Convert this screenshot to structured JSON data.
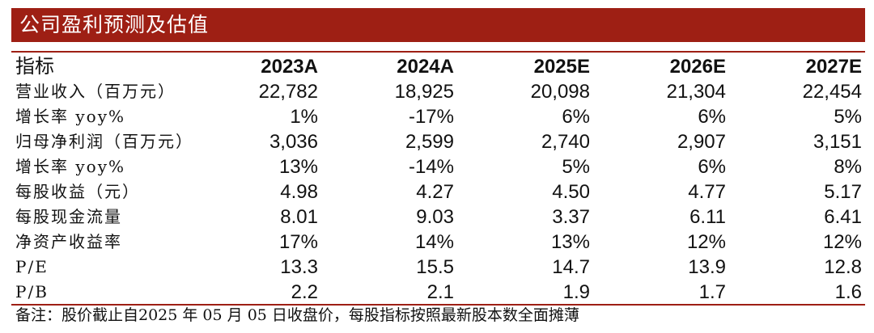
{
  "title": "公司盈利预测及估值",
  "table": {
    "header_label": "指标",
    "columns": [
      "2023A",
      "2024A",
      "2025E",
      "2026E",
      "2027E"
    ],
    "rows": [
      {
        "label": "营业收入（百万元）",
        "values": [
          "22,782",
          "18,925",
          "20,098",
          "21,304",
          "22,454"
        ]
      },
      {
        "label": "增长率 yoy%",
        "values": [
          "1%",
          "-17%",
          "6%",
          "6%",
          "5%"
        ]
      },
      {
        "label": "归母净利润（百万元）",
        "values": [
          "3,036",
          "2,599",
          "2,740",
          "2,907",
          "3,151"
        ]
      },
      {
        "label": "增长率 yoy%",
        "values": [
          "13%",
          "-14%",
          "5%",
          "6%",
          "8%"
        ]
      },
      {
        "label": "每股收益（元）",
        "values": [
          "4.98",
          "4.27",
          "4.50",
          "4.77",
          "5.17"
        ]
      },
      {
        "label": "每股现金流量",
        "values": [
          "8.01",
          "9.03",
          "3.37",
          "6.11",
          "6.41"
        ]
      },
      {
        "label": "净资产收益率",
        "values": [
          "17%",
          "14%",
          "13%",
          "12%",
          "12%"
        ]
      },
      {
        "label": "P/E",
        "values": [
          "13.3",
          "15.5",
          "14.7",
          "13.9",
          "12.8"
        ]
      },
      {
        "label": "P/B",
        "values": [
          "2.2",
          "2.1",
          "1.9",
          "1.7",
          "1.6"
        ]
      }
    ]
  },
  "footnote": "备注：股价截止自2025 年 05 月 05 日收盘价，每股指标按照最新股本数全面摊薄",
  "colors": {
    "accent": "#9e1f14",
    "title_text": "#ffffff",
    "body_text": "#111111"
  }
}
